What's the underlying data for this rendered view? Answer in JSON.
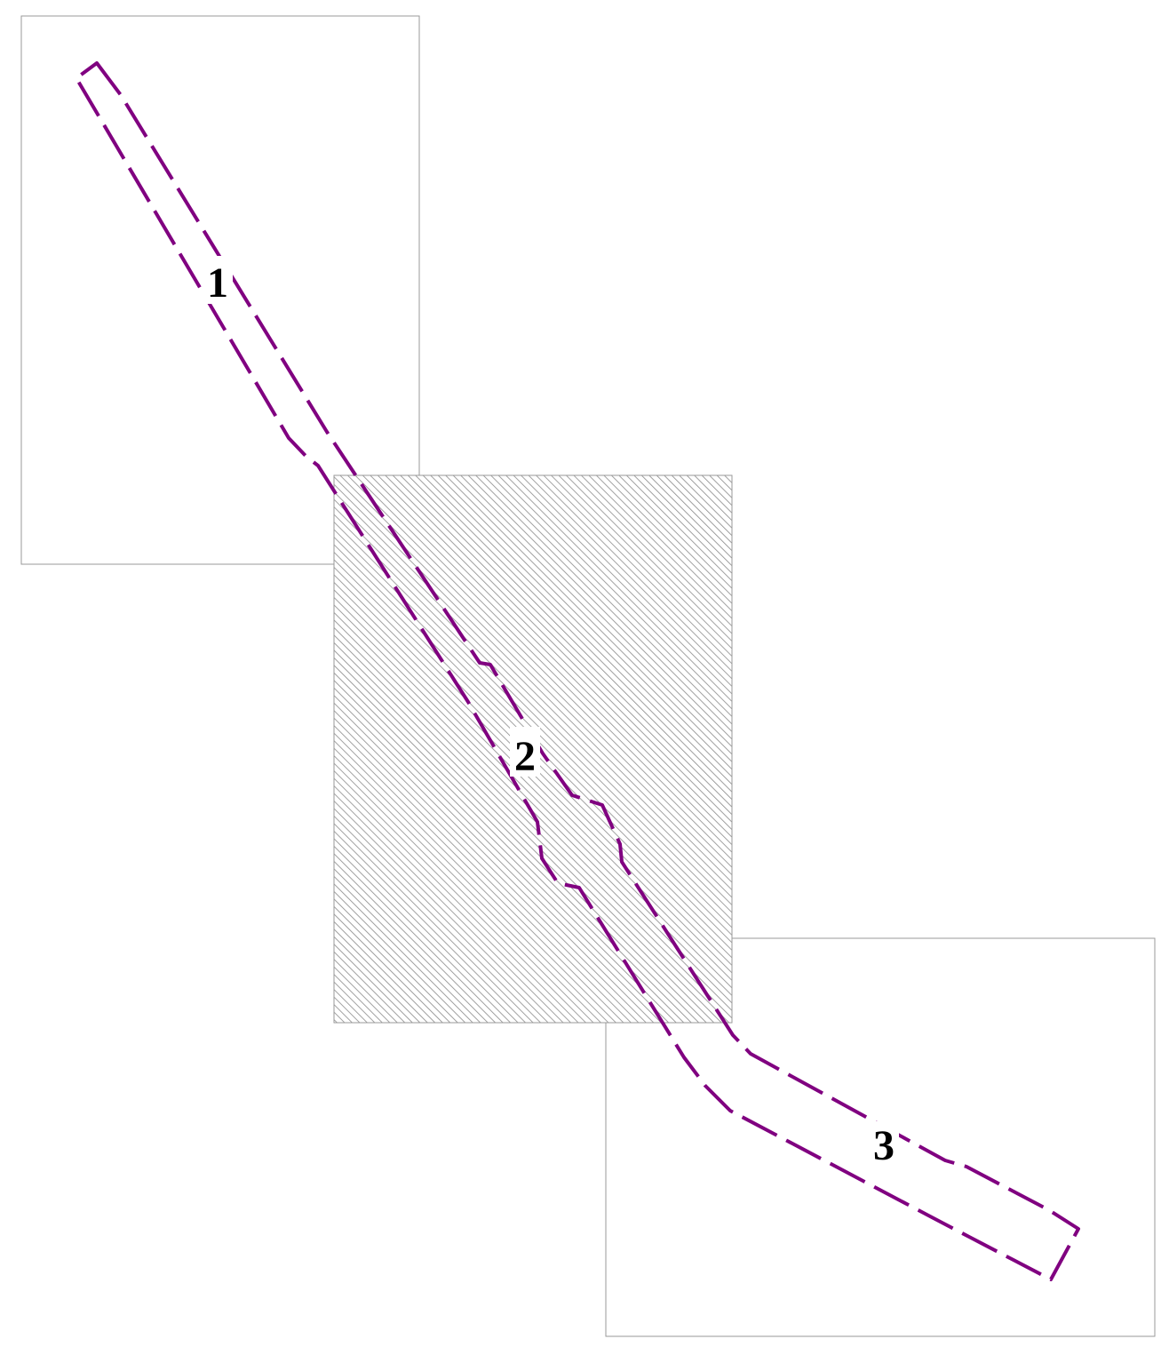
{
  "colors": {
    "corridor": "#800080",
    "frame": "#9a9a9a",
    "hatch": "#8a8a8a",
    "label": "#000000"
  },
  "sheets": [
    {
      "label": "1",
      "selected": false
    },
    {
      "label": "2",
      "selected": true
    },
    {
      "label": "3",
      "selected": false
    }
  ]
}
